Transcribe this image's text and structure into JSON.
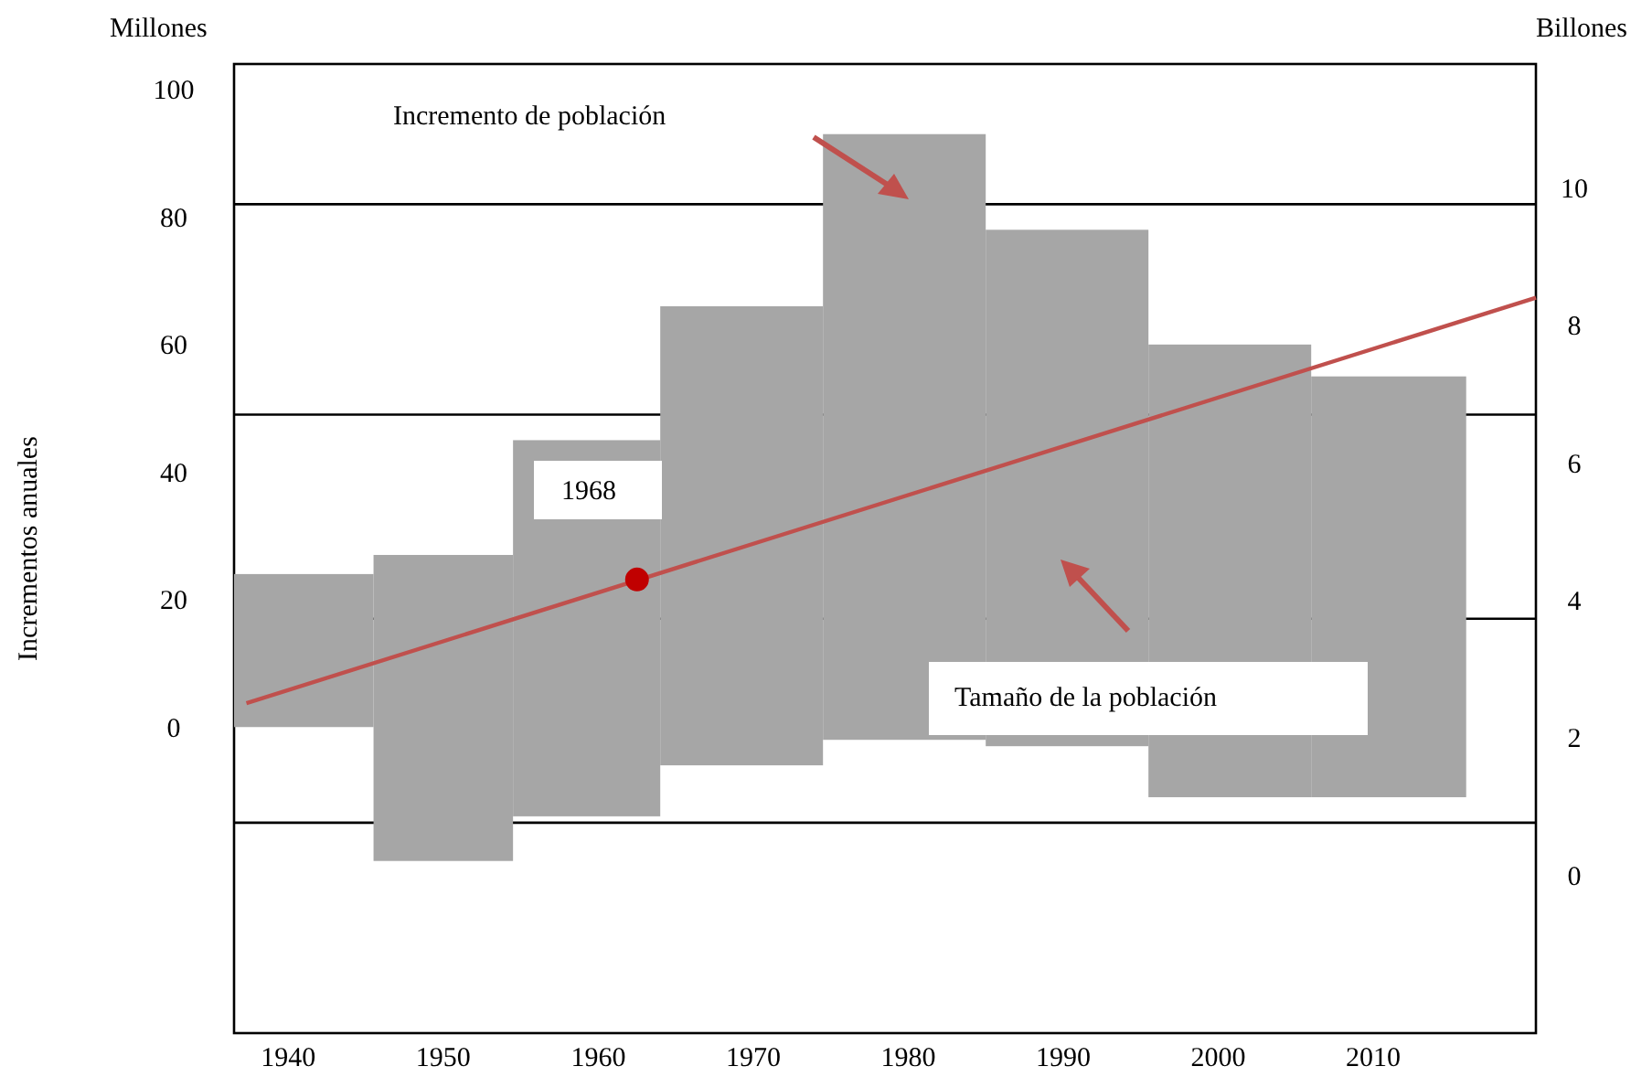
{
  "chart_data": {
    "type": "bar",
    "ylabel": "Incrementos anuales",
    "y2label": "Billones",
    "x": [
      1941,
      1950,
      1959,
      1969,
      1980,
      1990,
      2001,
      2011
    ],
    "series": [
      {
        "color": "#a6a6a6",
        "values": [
          24,
          48,
          59,
          72,
          95,
          81,
          71,
          66
        ],
        "base": [
          0,
          -21,
          -14,
          -6,
          -2,
          -3,
          -11,
          -11
        ]
      },
      {
        "type": "line",
        "axis": "y2",
        "color": "#c0504d",
        "x": [
          1937.3,
          2020.5
        ],
        "values": [
          2.5,
          8.4
        ]
      },
      {
        "type": "scatter",
        "axis": "y2",
        "color": "#c00000",
        "marker": "circle",
        "x": [
          1962.5
        ],
        "values": [
          4.3
        ]
      }
    ],
    "xlim": [
      1936.5,
      2020.5
    ],
    "xticks": [
      1940,
      1950,
      1960,
      1970,
      1980,
      1990,
      2000,
      2010
    ],
    "ylim": [
      -48,
      104
    ],
    "yticks": [
      0,
      20,
      40,
      60,
      80,
      100
    ],
    "y2lim": [
      -2.3,
      11.8
    ],
    "y2ticks": [
      0,
      2,
      4,
      6,
      8,
      10
    ],
    "ref_lines": [
      {
        "axis": "y",
        "value": 82,
        "color": "#000000"
      },
      {
        "axis": "y",
        "value": 49,
        "color": "#000000"
      },
      {
        "axis": "y",
        "value": 17,
        "color": "#000000"
      },
      {
        "axis": "y",
        "value": -15,
        "color": "#000000"
      }
    ],
    "annotations": [
      "Millones",
      "Incremento de población",
      "Tamaño de la población",
      "1968"
    ]
  }
}
